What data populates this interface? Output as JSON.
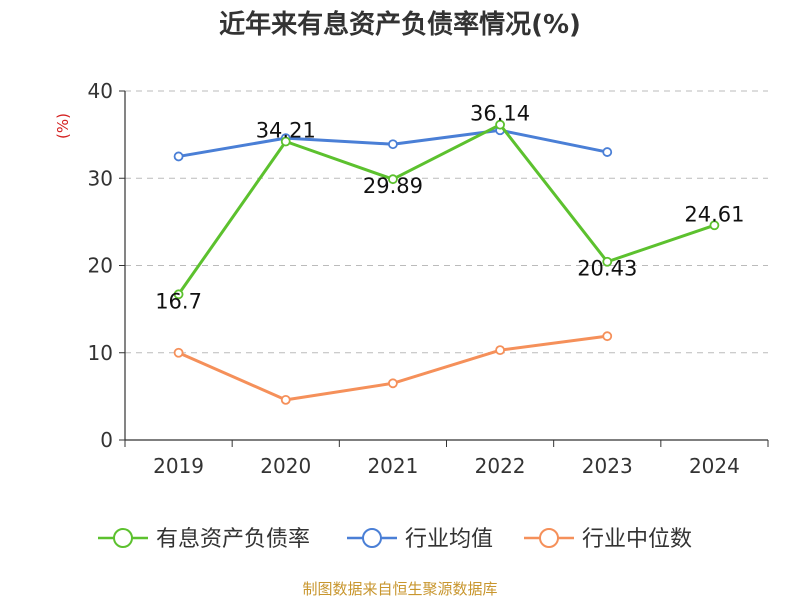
{
  "title": "近年来有息资产负债率情况(%)",
  "source": "制图数据来自恒生聚源数据库",
  "chart_data": {
    "type": "line",
    "title": "近年来有息资产负债率情况(%)",
    "unit_label": "(%)",
    "categories": [
      "2019",
      "2020",
      "2021",
      "2022",
      "2023",
      "2024"
    ],
    "ylim": [
      0,
      40
    ],
    "yticks": [
      0,
      10,
      20,
      30,
      40
    ],
    "grid": true,
    "legend_position": "bottom",
    "series": [
      {
        "name": "有息资产负债率",
        "color": "#5cc12e",
        "values": [
          16.7,
          34.21,
          29.89,
          36.14,
          20.43,
          24.61
        ],
        "labels": [
          "16.7",
          "34.21",
          "29.89",
          "36.14",
          "20.43",
          "24.61"
        ]
      },
      {
        "name": "行业均值",
        "color": "#4a7fd6",
        "values": [
          32.5,
          34.6,
          33.9,
          35.5,
          33.0,
          null
        ]
      },
      {
        "name": "行业中位数",
        "color": "#f5905a",
        "values": [
          10.0,
          4.6,
          6.5,
          10.3,
          11.9,
          null
        ]
      }
    ]
  }
}
